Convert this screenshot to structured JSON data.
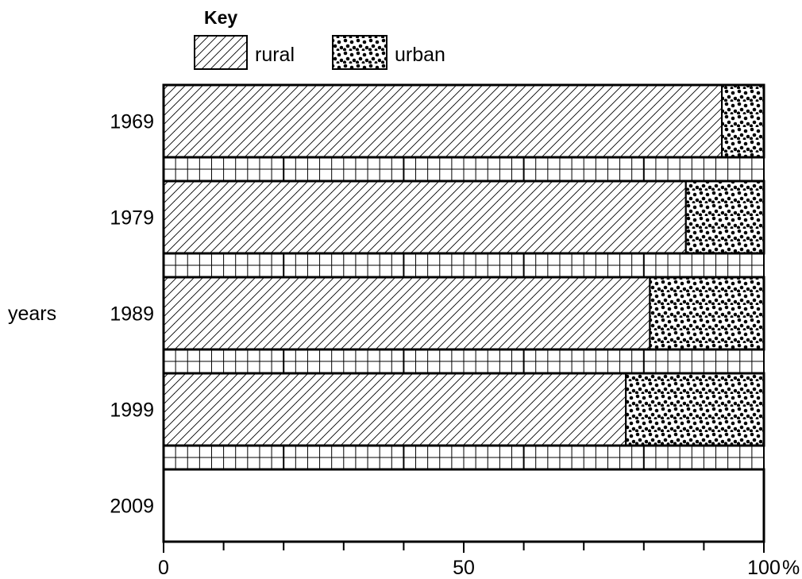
{
  "chart_data": {
    "type": "bar",
    "orientation": "horizontal",
    "stacked": true,
    "percent_stacked": true,
    "title": "",
    "key": {
      "title": "Key",
      "entries": [
        {
          "name": "rural",
          "pattern": "diagonal-hatch"
        },
        {
          "name": "urban",
          "pattern": "dots"
        }
      ]
    },
    "ylabel": "years",
    "xlabel": "",
    "x_unit": "%",
    "xlim": [
      0,
      100
    ],
    "x_ticks": [
      0,
      10,
      20,
      30,
      40,
      50,
      60,
      70,
      80,
      90,
      100
    ],
    "x_tick_labels": [
      {
        "value": 0,
        "label": "0"
      },
      {
        "value": 50,
        "label": "50"
      },
      {
        "value": 100,
        "label": "100"
      }
    ],
    "grid_between_bars": true,
    "grid_cell_percent": 2,
    "categories": [
      "1969",
      "1979",
      "1989",
      "1999",
      "2009"
    ],
    "series": [
      {
        "name": "rural",
        "values": [
          93,
          87,
          81,
          77,
          null
        ]
      },
      {
        "name": "urban",
        "values": [
          7,
          13,
          19,
          23,
          null
        ]
      }
    ],
    "blank_categories": [
      "2009"
    ]
  }
}
